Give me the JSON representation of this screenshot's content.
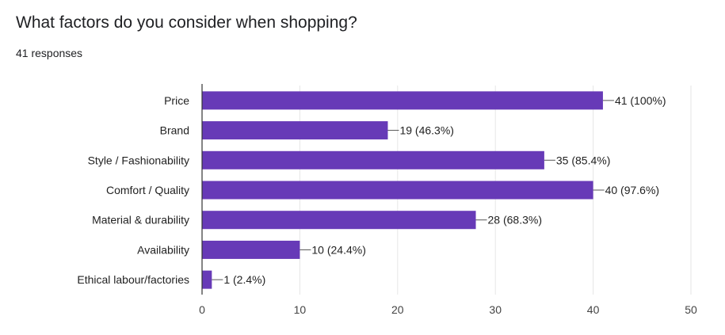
{
  "question": {
    "title": "What factors do you consider when shopping?",
    "responses": "41 responses"
  },
  "colors": {
    "bar": "#673ab7",
    "axis": "#333333",
    "grid": "#e6e6e6"
  },
  "chart_data": {
    "type": "bar",
    "orientation": "horizontal",
    "categories": [
      "Price",
      "Brand",
      "Style / Fashionability",
      "Comfort / Quality",
      "Material & durability",
      "Availability",
      "Ethical labour/factories"
    ],
    "values": [
      41,
      19,
      35,
      40,
      28,
      10,
      1
    ],
    "data_labels": [
      "41 (100%)",
      "19 (46.3%)",
      "35 (85.4%)",
      "40 (97.6%)",
      "28 (68.3%)",
      "10 (24.4%)",
      "1 (2.4%)"
    ],
    "xlim": [
      0,
      50
    ],
    "xticks": [
      0,
      10,
      20,
      30,
      40,
      50
    ],
    "grid": true,
    "legend": "none"
  }
}
